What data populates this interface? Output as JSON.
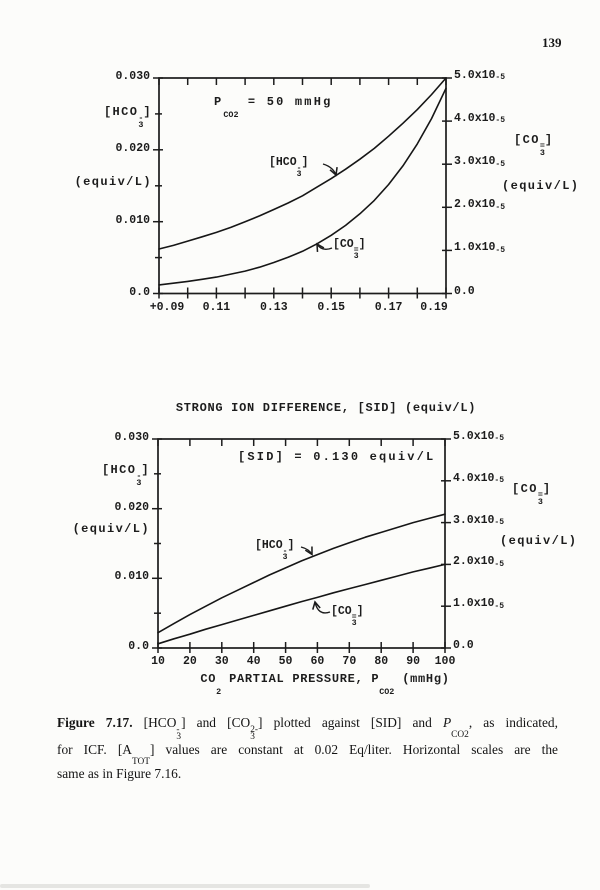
{
  "page": {
    "number": "139"
  },
  "colors": {
    "ink": "#1c1c1c",
    "paper": "#fcfcfa"
  },
  "caption": {
    "lines": [
      "~Figure 7.17.~ [HCO{3|-}] and [CO{3|2-}] plotted against [SID] and *P*{CO2|}, as indicated,",
      "for ICF. [A{TOT|}] values are constant at 0.02 Eq/liter. Horizontal scales are the",
      "same as in Figure 7.16."
    ]
  },
  "chart_data": [
    {
      "type": "line",
      "annotation": "P{CO2|} = 50 mmHg",
      "xlabel": "STRONG ION DIFFERENCE, [SID] (equiv/L)",
      "x": {
        "min": 0.09,
        "max": 0.19,
        "ticks": [
          0.09,
          0.1,
          0.11,
          0.12,
          0.13,
          0.14,
          0.15,
          0.16,
          0.17,
          0.18,
          0.19
        ],
        "tick_labels": [
          {
            "v": 0.09,
            "t": "+0.09"
          },
          {
            "v": 0.11,
            "t": "0.11"
          },
          {
            "v": 0.13,
            "t": "0.13"
          },
          {
            "v": 0.15,
            "t": "0.15"
          },
          {
            "v": 0.17,
            "t": "0.17"
          },
          {
            "v": 0.19,
            "t": "0.19"
          }
        ]
      },
      "y_left": {
        "min": 0,
        "max": 0.03,
        "title_lines": [
          "[HCO{3|-}]",
          "(equiv/L)"
        ],
        "ticks": [
          {
            "v": 0.03,
            "t": "0.030"
          },
          {
            "v": 0.02,
            "t": "0.020"
          },
          {
            "v": 0.01,
            "t": "0.010"
          },
          {
            "v": 0.0,
            "t": "0.0"
          }
        ],
        "minor_ticks": [
          0.025,
          0.015,
          0.005
        ]
      },
      "y_right": {
        "min": 0,
        "max": 5e-05,
        "title_lines": [
          "[CO{3|=}]",
          "(equiv/L)"
        ],
        "ticks": [
          {
            "v": 5e-05,
            "t": "5.0x10{|-5}"
          },
          {
            "v": 4e-05,
            "t": "4.0x10{|-5}"
          },
          {
            "v": 3e-05,
            "t": "3.0x10{|-5}"
          },
          {
            "v": 2e-05,
            "t": "2.0x10{|-5}"
          },
          {
            "v": 1e-05,
            "t": "1.0x10{|-5}"
          },
          {
            "v": 0,
            "t": "0.0"
          }
        ]
      },
      "series": [
        {
          "label": "[HCO{3|-}]",
          "axis": "left",
          "points": [
            [
              0.09,
              0.0062
            ],
            [
              0.095,
              0.0067
            ],
            [
              0.1,
              0.0073
            ],
            [
              0.105,
              0.0079
            ],
            [
              0.11,
              0.0085
            ],
            [
              0.115,
              0.0092
            ],
            [
              0.12,
              0.01
            ],
            [
              0.125,
              0.0108
            ],
            [
              0.13,
              0.0117
            ],
            [
              0.135,
              0.0126
            ],
            [
              0.14,
              0.0136
            ],
            [
              0.145,
              0.0148
            ],
            [
              0.15,
              0.016
            ],
            [
              0.155,
              0.0173
            ],
            [
              0.16,
              0.0187
            ],
            [
              0.165,
              0.0202
            ],
            [
              0.17,
              0.0219
            ],
            [
              0.175,
              0.0237
            ],
            [
              0.18,
              0.0256
            ],
            [
              0.185,
              0.0277
            ],
            [
              0.19,
              0.03
            ]
          ]
        },
        {
          "label": "[CO{3|=}]",
          "axis": "right",
          "points": [
            [
              0.09,
              2e-06
            ],
            [
              0.095,
              2.4e-06
            ],
            [
              0.1,
              2.8e-06
            ],
            [
              0.105,
              3.3e-06
            ],
            [
              0.11,
              3.8e-06
            ],
            [
              0.115,
              4.5e-06
            ],
            [
              0.12,
              5.2e-06
            ],
            [
              0.125,
              6.1e-06
            ],
            [
              0.13,
              7.2e-06
            ],
            [
              0.135,
              8.4e-06
            ],
            [
              0.14,
              9.8e-06
            ],
            [
              0.145,
              1.15e-05
            ],
            [
              0.15,
              1.35e-05
            ],
            [
              0.155,
              1.58e-05
            ],
            [
              0.16,
              1.85e-05
            ],
            [
              0.165,
              2.16e-05
            ],
            [
              0.17,
              2.53e-05
            ],
            [
              0.175,
              2.96e-05
            ],
            [
              0.18,
              3.47e-05
            ],
            [
              0.185,
              4.06e-05
            ],
            [
              0.19,
              4.76e-05
            ]
          ]
        }
      ]
    },
    {
      "type": "line",
      "annotation": "[SID] = 0.130 equiv/L",
      "xlabel": "CO{2|} PARTIAL PRESSURE, P{CO2|} (mmHg)",
      "x": {
        "min": 10,
        "max": 100,
        "ticks": [
          10,
          20,
          30,
          40,
          50,
          60,
          70,
          80,
          90,
          100
        ],
        "tick_labels": [
          {
            "v": 10,
            "t": "10"
          },
          {
            "v": 20,
            "t": "20"
          },
          {
            "v": 30,
            "t": "30"
          },
          {
            "v": 40,
            "t": "40"
          },
          {
            "v": 50,
            "t": "50"
          },
          {
            "v": 60,
            "t": "60"
          },
          {
            "v": 70,
            "t": "70"
          },
          {
            "v": 80,
            "t": "80"
          },
          {
            "v": 90,
            "t": "90"
          },
          {
            "v": 100,
            "t": "100"
          }
        ]
      },
      "y_left": {
        "min": 0,
        "max": 0.03,
        "title_lines": [
          "[HCO{3|-}]",
          "(equiv/L)"
        ],
        "ticks": [
          {
            "v": 0.03,
            "t": "0.030"
          },
          {
            "v": 0.02,
            "t": "0.020"
          },
          {
            "v": 0.01,
            "t": "0.010"
          },
          {
            "v": 0.0,
            "t": "0.0"
          }
        ],
        "minor_ticks": [
          0.025,
          0.015,
          0.005
        ]
      },
      "y_right": {
        "min": 0,
        "max": 5e-05,
        "title_lines": [
          "[CO{3|=}]",
          "(equiv/L)"
        ],
        "ticks": [
          {
            "v": 5e-05,
            "t": "5.0x10{|-5}"
          },
          {
            "v": 4e-05,
            "t": "4.0x10{|-5}"
          },
          {
            "v": 3e-05,
            "t": "3.0x10{|-5}"
          },
          {
            "v": 2e-05,
            "t": "2.0x10{|-5}"
          },
          {
            "v": 1e-05,
            "t": "1.0x10{|-5}"
          },
          {
            "v": 0,
            "t": "0.0"
          }
        ]
      },
      "series": [
        {
          "label": "[HCO{3|-}]",
          "axis": "left",
          "points": [
            [
              10,
              0.0022
            ],
            [
              15,
              0.0035
            ],
            [
              20,
              0.0048
            ],
            [
              25,
              0.006
            ],
            [
              30,
              0.0072
            ],
            [
              35,
              0.0083
            ],
            [
              40,
              0.0094
            ],
            [
              45,
              0.0105
            ],
            [
              50,
              0.0115
            ],
            [
              55,
              0.0125
            ],
            [
              60,
              0.0134
            ],
            [
              65,
              0.0143
            ],
            [
              70,
              0.0151
            ],
            [
              75,
              0.0159
            ],
            [
              80,
              0.0166
            ],
            [
              85,
              0.0173
            ],
            [
              90,
              0.018
            ],
            [
              95,
              0.0186
            ],
            [
              100,
              0.0192
            ]
          ]
        },
        {
          "label": "[CO{3|=}]",
          "axis": "right",
          "points": [
            [
              10,
              1e-06
            ],
            [
              15,
              2.2e-06
            ],
            [
              20,
              3.3e-06
            ],
            [
              25,
              4.5e-06
            ],
            [
              30,
              5.6e-06
            ],
            [
              35,
              6.7e-06
            ],
            [
              40,
              7.8e-06
            ],
            [
              45,
              8.9e-06
            ],
            [
              50,
              1e-05
            ],
            [
              55,
              1.11e-05
            ],
            [
              60,
              1.21e-05
            ],
            [
              65,
              1.32e-05
            ],
            [
              70,
              1.42e-05
            ],
            [
              75,
              1.52e-05
            ],
            [
              80,
              1.62e-05
            ],
            [
              85,
              1.72e-05
            ],
            [
              90,
              1.82e-05
            ],
            [
              95,
              1.91e-05
            ],
            [
              100,
              2e-05
            ]
          ]
        }
      ]
    }
  ]
}
